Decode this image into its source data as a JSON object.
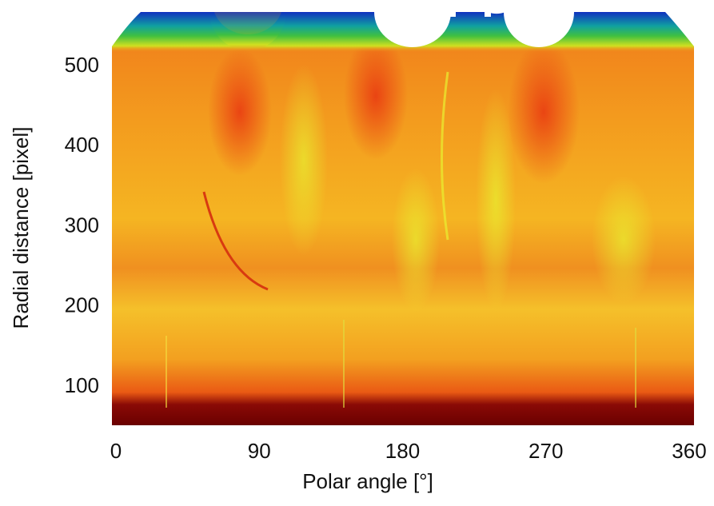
{
  "chart_data": {
    "type": "heatmap",
    "xlabel": "Polar angle [°]",
    "ylabel": "Radial distance [pixel]",
    "xlim": [
      0,
      360
    ],
    "xticks": [
      0,
      90,
      180,
      270,
      360
    ],
    "ylim": [
      52,
      568
    ],
    "yticks": [
      100,
      200,
      300,
      400,
      500
    ]
  }
}
